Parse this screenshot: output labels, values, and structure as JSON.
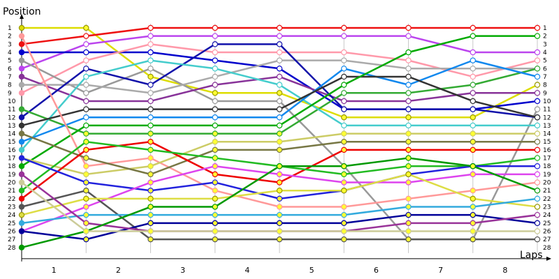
{
  "chart_data": {
    "type": "line",
    "title": "",
    "ylabel": "Position",
    "xlabel": "Laps",
    "x_ticks": [
      "1",
      "2",
      "3",
      "4",
      "5",
      "6",
      "7",
      "8"
    ],
    "y_ticks": [
      "1",
      "2",
      "3",
      "4",
      "5",
      "6",
      "7",
      "8",
      "9",
      "10",
      "11",
      "12",
      "13",
      "14",
      "15",
      "16",
      "17",
      "18",
      "19",
      "20",
      "21",
      "22",
      "23",
      "24",
      "25",
      "26",
      "27",
      "28"
    ],
    "right_ticks": [
      "1",
      "2",
      "3",
      "4",
      "5",
      "6",
      "7",
      "8",
      "9",
      "10",
      "11",
      "12",
      "13",
      "14",
      "15",
      "16",
      "17",
      "18",
      "19",
      "20",
      "21",
      "22",
      "23",
      "24",
      "25",
      "26",
      "27",
      "28"
    ],
    "x": [
      0,
      1,
      2,
      3,
      4,
      5,
      6,
      7,
      8
    ],
    "ylim": [
      28,
      1
    ],
    "grid": true,
    "series": [
      {
        "color": "#dddd00",
        "values": [
          1,
          1,
          7,
          9,
          9,
          12,
          12,
          12,
          8
        ]
      },
      {
        "color": "#ee1111",
        "values": [
          3,
          2,
          1,
          1,
          1,
          1,
          1,
          1,
          1
        ]
      },
      {
        "color": "#bb44ee",
        "values": [
          6,
          3,
          2,
          2,
          2,
          2,
          2,
          4,
          4
        ]
      },
      {
        "color": "#0000cc",
        "values": [
          4,
          4,
          4,
          5,
          6,
          11,
          11,
          11,
          10
        ]
      },
      {
        "color": "#ff99aa",
        "values": [
          9,
          5,
          3,
          4,
          4,
          4,
          5,
          7,
          5
        ]
      },
      {
        "color": "#999999",
        "values": [
          5,
          9,
          6,
          10,
          10,
          18,
          27,
          27,
          11
        ]
      },
      {
        "color": "#883399",
        "values": [
          7,
          10,
          10,
          8,
          7,
          10,
          10,
          9,
          9
        ]
      },
      {
        "color": "#aaaaaa",
        "values": [
          8,
          8,
          9,
          7,
          5,
          5,
          6,
          6,
          6
        ]
      },
      {
        "color": "#1111aa",
        "values": [
          12,
          6,
          8,
          3,
          3,
          11,
          11,
          11,
          12
        ]
      },
      {
        "color": "#33aa33",
        "values": [
          11,
          14,
          14,
          14,
          14,
          9,
          9,
          8,
          6
        ]
      },
      {
        "color": "#44cccc",
        "values": [
          16,
          7,
          5,
          6,
          8,
          13,
          13,
          13,
          13
        ]
      },
      {
        "color": "#1188ee",
        "values": [
          15,
          12,
          12,
          12,
          12,
          6,
          8,
          5,
          7
        ]
      },
      {
        "color": "#333333",
        "values": [
          13,
          11,
          11,
          11,
          11,
          7,
          7,
          10,
          12
        ]
      },
      {
        "color": "#00aa00",
        "values": [
          18,
          13,
          13,
          13,
          13,
          8,
          4,
          2,
          2
        ]
      },
      {
        "color": "#ff9999",
        "values": [
          2,
          18,
          17,
          21,
          23,
          23,
          22,
          21,
          20
        ]
      },
      {
        "color": "#cccc66",
        "values": [
          17,
          19,
          18,
          15,
          15,
          14,
          14,
          14,
          14
        ]
      },
      {
        "color": "#777744",
        "values": [
          14,
          17,
          19,
          16,
          16,
          15,
          15,
          15,
          15
        ]
      },
      {
        "color": "#ee0000",
        "values": [
          22,
          16,
          15,
          19,
          20,
          16,
          16,
          16,
          16
        ]
      },
      {
        "color": "#22bb22",
        "values": [
          21,
          15,
          16,
          17,
          18,
          19,
          18,
          18,
          17
        ]
      },
      {
        "color": "#2222dd",
        "values": [
          17,
          20,
          21,
          20,
          22,
          21,
          19,
          18,
          18
        ]
      },
      {
        "color": "#dd44ee",
        "values": [
          26,
          23,
          20,
          18,
          19,
          20,
          20,
          19,
          19
        ]
      },
      {
        "color": "#555555",
        "values": [
          23,
          21,
          27,
          27,
          27,
          27,
          27,
          27,
          27
        ]
      },
      {
        "color": "#dddd44",
        "values": [
          24,
          22,
          22,
          22,
          21,
          21,
          19,
          22,
          23
        ]
      },
      {
        "color": "#33aadd",
        "values": [
          25,
          24,
          24,
          24,
          24,
          24,
          23,
          23,
          22
        ]
      },
      {
        "color": "#000099",
        "values": [
          26,
          27,
          25,
          25,
          25,
          25,
          24,
          24,
          25
        ]
      },
      {
        "color": "#993399",
        "values": [
          19,
          25,
          26,
          26,
          26,
          26,
          25,
          25,
          24
        ]
      },
      {
        "color": "#009900",
        "values": [
          28,
          26,
          23,
          23,
          18,
          18,
          17,
          18,
          21
        ]
      },
      {
        "color": "#cccc99",
        "values": [
          20,
          26,
          26,
          26,
          26,
          26,
          26,
          26,
          26
        ]
      }
    ]
  }
}
